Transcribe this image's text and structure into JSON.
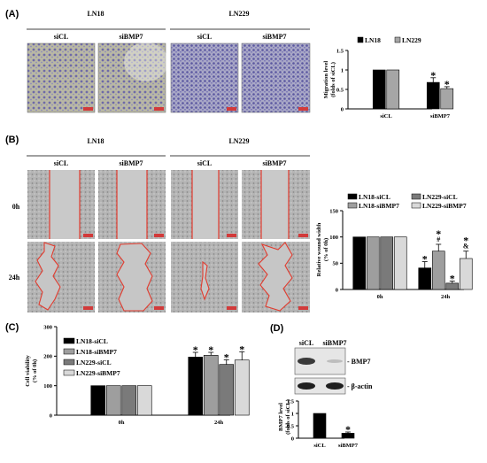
{
  "figure": {
    "panels": {
      "A": "(A)",
      "B": "(B)",
      "C": "(C)",
      "D": "(D)"
    },
    "cell_lines": [
      "LN18",
      "LN229"
    ],
    "treatments": [
      "siCL",
      "siBMP7"
    ],
    "timepoints": [
      "0h",
      "24h"
    ],
    "blot_labels": [
      "- BMP7",
      "- β-actin"
    ],
    "colors": {
      "black": "#000000",
      "gray": "#9e9e9e",
      "dark_gray": "#7a7a7a",
      "light_gray": "#d9d9d9",
      "scratch_line": "#e23b2e",
      "micro_purple": "#a7a7c6",
      "micro_tan": "#bdb89b",
      "micro_gray": "#b6b6b6"
    }
  },
  "chart_data": [
    {
      "panel": "A",
      "type": "bar",
      "categories": [
        "siCL",
        "siBMP7"
      ],
      "ylabel": "Migration level (folds of siCL)",
      "ylim": [
        0,
        1.5
      ],
      "yticks": [
        0,
        0.5,
        1,
        1.5
      ],
      "series": [
        {
          "name": "LN18",
          "values": [
            1.0,
            0.68
          ],
          "errors": [
            0,
            0.12
          ],
          "color": "#000000"
        },
        {
          "name": "LN229",
          "values": [
            1.0,
            0.52
          ],
          "errors": [
            0,
            0.05
          ],
          "color": "#a6a6a6"
        }
      ],
      "annotations": [
        {
          "series": 0,
          "category": 1,
          "text": "*"
        },
        {
          "series": 1,
          "category": 1,
          "text": "*"
        }
      ],
      "legend": "top"
    },
    {
      "panel": "B",
      "type": "bar",
      "categories": [
        "0h",
        "24h"
      ],
      "ylabel": "Relative wound width (% of 0h)",
      "ylim": [
        0,
        150
      ],
      "yticks": [
        0,
        50,
        100,
        150
      ],
      "series": [
        {
          "name": "LN18-siCL",
          "values": [
            100,
            41
          ],
          "errors": [
            0,
            12
          ],
          "color": "#000000"
        },
        {
          "name": "LN18-siBMP7",
          "values": [
            100,
            73
          ],
          "errors": [
            0,
            13
          ],
          "color": "#9e9e9e"
        },
        {
          "name": "LN229-siCL",
          "values": [
            100,
            12
          ],
          "errors": [
            0,
            4
          ],
          "color": "#7a7a7a"
        },
        {
          "name": "LN229-siBMP7",
          "values": [
            100,
            59
          ],
          "errors": [
            0,
            14
          ],
          "color": "#d9d9d9"
        }
      ],
      "annotations": [
        {
          "series": 0,
          "category": 1,
          "text": "*"
        },
        {
          "series": 1,
          "category": 1,
          "text": "*"
        },
        {
          "series": 1,
          "category": 1,
          "text": "#"
        },
        {
          "series": 2,
          "category": 1,
          "text": "*"
        },
        {
          "series": 3,
          "category": 1,
          "text": "*"
        },
        {
          "series": 3,
          "category": 1,
          "text": "&"
        }
      ],
      "legend": "top"
    },
    {
      "panel": "C",
      "type": "bar",
      "categories": [
        "0h",
        "24h"
      ],
      "ylabel": "Cell viability (% of 0h)",
      "ylim": [
        0,
        300
      ],
      "yticks": [
        0,
        100,
        200,
        300
      ],
      "series": [
        {
          "name": "LN18-siCL",
          "values": [
            100,
            197
          ],
          "errors": [
            0,
            16
          ],
          "color": "#000000"
        },
        {
          "name": "LN18-siBMP7",
          "values": [
            100,
            203
          ],
          "errors": [
            0,
            10
          ],
          "color": "#9e9e9e"
        },
        {
          "name": "LN229-siCL",
          "values": [
            100,
            172
          ],
          "errors": [
            0,
            16
          ],
          "color": "#7a7a7a"
        },
        {
          "name": "LN229-siBMP7",
          "values": [
            100,
            187
          ],
          "errors": [
            0,
            28
          ],
          "color": "#d9d9d9"
        }
      ],
      "annotations": [
        {
          "series": 0,
          "category": 1,
          "text": "*"
        },
        {
          "series": 1,
          "category": 1,
          "text": "*"
        },
        {
          "series": 2,
          "category": 1,
          "text": "*"
        },
        {
          "series": 3,
          "category": 1,
          "text": "*"
        }
      ],
      "legend": "top-left"
    },
    {
      "panel": "D",
      "type": "bar",
      "categories": [
        "siCL",
        "siBMP7"
      ],
      "ylabel": "BMP7 level (folds of siCL)",
      "ylim": [
        0,
        1.5
      ],
      "yticks": [
        0,
        0.5,
        1,
        1.5
      ],
      "series": [
        {
          "name": "",
          "values": [
            1.0,
            0.2
          ],
          "errors": [
            0,
            0.05
          ],
          "color": "#000000"
        }
      ],
      "annotations": [
        {
          "series": 0,
          "category": 1,
          "text": "*"
        }
      ],
      "legend": "none"
    }
  ]
}
